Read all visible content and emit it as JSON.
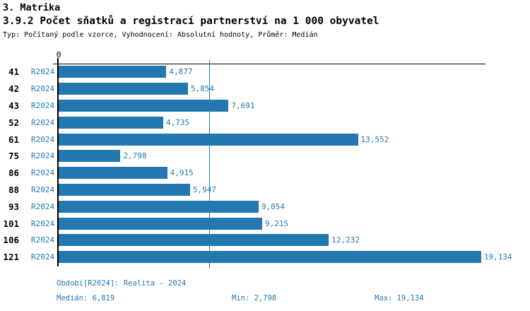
{
  "header": {
    "section_title": "3. Matrika",
    "chart_title": "3.9.2 Počet sňatků a registrací partnerství na 1 000 obyvatel",
    "subtitle": "Typ: Počítaný podle vzorce, Vyhodnocení: Absolutní hodnoty, Průměr: Medián"
  },
  "chart_data": {
    "type": "bar",
    "orientation": "horizontal",
    "title": "3.9.2 Počet sňatků a registrací partnerství na 1 000 obyvatel",
    "axis": {
      "origin_label": "0",
      "xlim": [
        0,
        19328
      ],
      "grid": false
    },
    "median_value": 6819,
    "min_value": 2798,
    "max_value": 19134,
    "categories": [
      "41",
      "42",
      "43",
      "52",
      "61",
      "75",
      "86",
      "88",
      "93",
      "101",
      "106",
      "121"
    ],
    "rows": [
      {
        "id": "41",
        "period": "R2024",
        "value": 4877,
        "value_label": "4,877"
      },
      {
        "id": "42",
        "period": "R2024",
        "value": 5854,
        "value_label": "5,854"
      },
      {
        "id": "43",
        "period": "R2024",
        "value": 7691,
        "value_label": "7,691"
      },
      {
        "id": "52",
        "period": "R2024",
        "value": 4735,
        "value_label": "4,735"
      },
      {
        "id": "61",
        "period": "R2024",
        "value": 13552,
        "value_label": "13,552"
      },
      {
        "id": "75",
        "period": "R2024",
        "value": 2798,
        "value_label": "2,798"
      },
      {
        "id": "86",
        "period": "R2024",
        "value": 4915,
        "value_label": "4,915"
      },
      {
        "id": "88",
        "period": "R2024",
        "value": 5947,
        "value_label": "5,947"
      },
      {
        "id": "93",
        "period": "R2024",
        "value": 9054,
        "value_label": "9,054"
      },
      {
        "id": "101",
        "period": "R2024",
        "value": 9215,
        "value_label": "9,215"
      },
      {
        "id": "106",
        "period": "R2024",
        "value": 12232,
        "value_label": "12,232"
      },
      {
        "id": "121",
        "period": "R2024",
        "value": 19134,
        "value_label": "19,134"
      }
    ],
    "colors": {
      "bar": "#2478b0",
      "median_line": "#2478b0",
      "label_text": "#2478b0",
      "axis": "#000000"
    }
  },
  "footer": {
    "period_line": "Období[R2024]: Realita - 2024",
    "median_label": "Medián: 6,819",
    "min_label": "Min: 2,798",
    "max_label": "Max: 19,134"
  }
}
